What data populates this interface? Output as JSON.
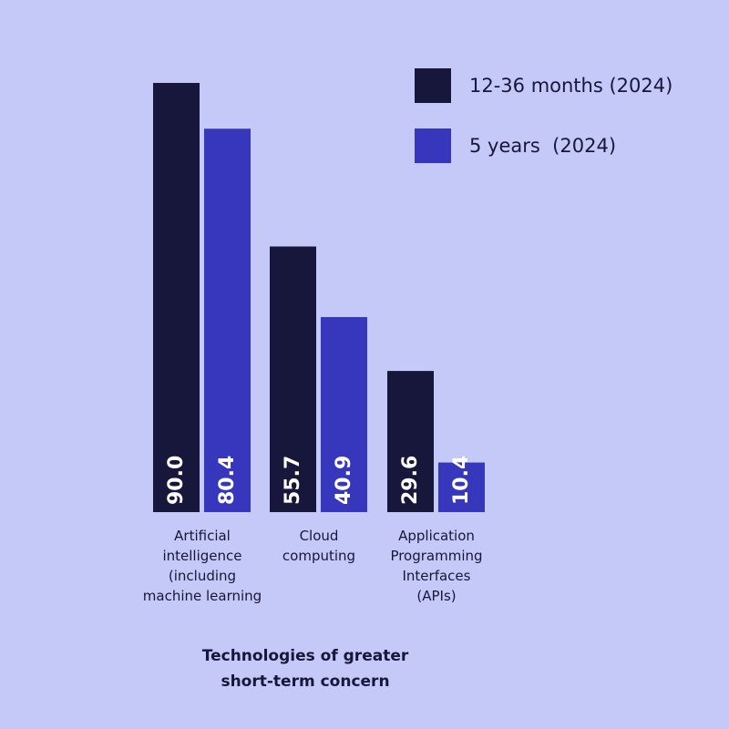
{
  "colors": {
    "background": "#c5c9f7",
    "series_1": "#16173a",
    "series_2": "#3737bd",
    "text": "#16173a",
    "bar_label": "#ffffff"
  },
  "chart_data": {
    "type": "bar",
    "title": "",
    "caption": "Technologies of greater\nshort-term concern",
    "xlabel": "",
    "ylabel": "",
    "ylim": [
      0,
      100
    ],
    "grid": false,
    "legend_position": "top-right",
    "categories": [
      "Artificial\nintelligence\n(including\nmachine learning",
      "Cloud\ncomputing",
      "Application\nProgramming\nInterfaces\n(APIs)"
    ],
    "series": [
      {
        "name": "12-36 months (2024)",
        "values": [
          90.0,
          55.7,
          29.6
        ],
        "labels": [
          "90.0",
          "55.7",
          "29.6"
        ]
      },
      {
        "name": "5 years  (2024)",
        "values": [
          80.4,
          40.9,
          10.4
        ],
        "labels": [
          "80.4",
          "40.9",
          "10.4"
        ]
      }
    ]
  }
}
